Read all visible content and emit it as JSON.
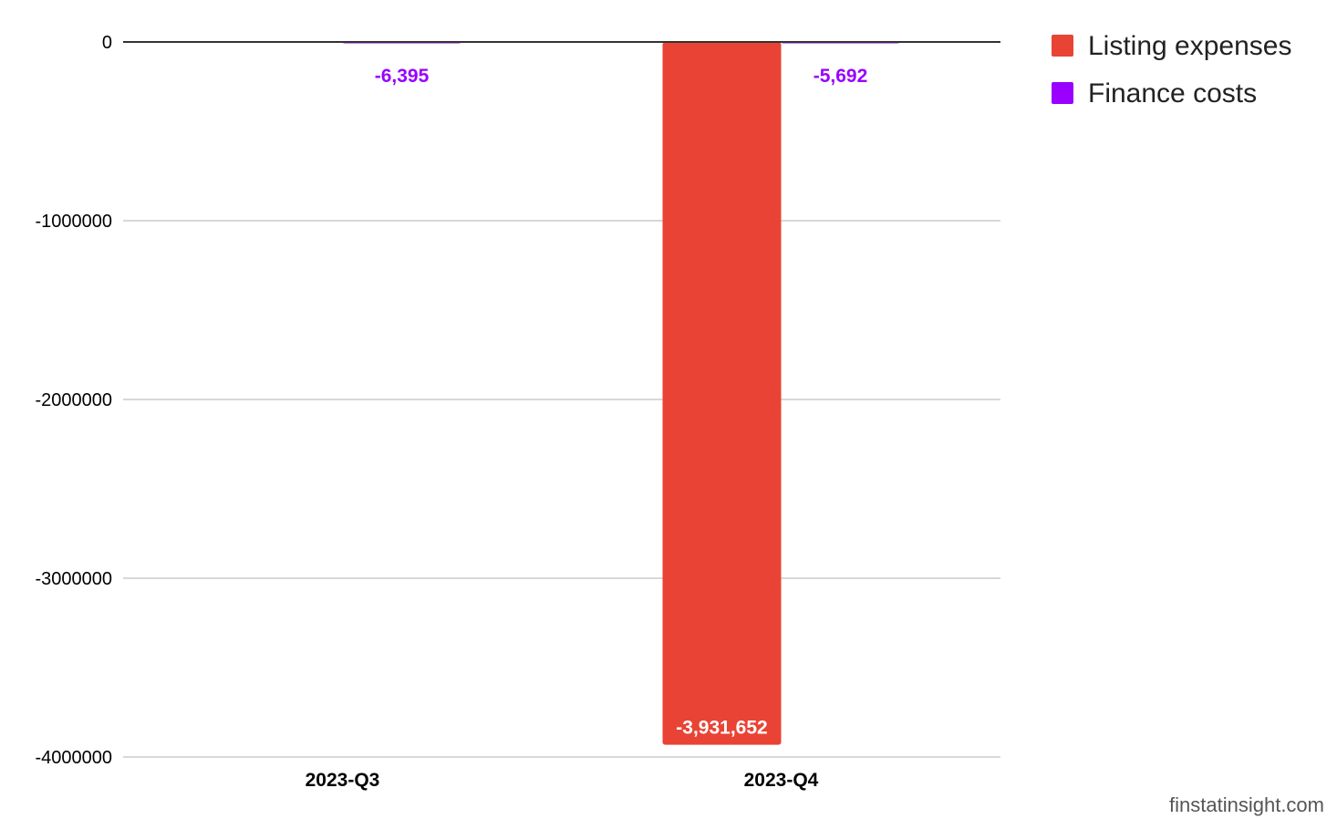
{
  "chart_data": {
    "type": "bar",
    "title": "",
    "xlabel": "",
    "ylabel": "",
    "categories": [
      "2023-Q3",
      "2023-Q4"
    ],
    "series": [
      {
        "name": "Listing expenses",
        "color": "#E94335",
        "values": [
          0,
          -3931652
        ],
        "labels": [
          "",
          "-3,931,652"
        ],
        "label_color": "#FFFFFF"
      },
      {
        "name": "Finance costs",
        "color": "#9900FF",
        "values": [
          -6395,
          -5692
        ],
        "labels": [
          "-6,395",
          "-5,692"
        ],
        "label_color": "#9900FF"
      }
    ],
    "ylim": [
      -4000000,
      0
    ],
    "yticks": [
      0,
      -1000000,
      -2000000,
      -3000000,
      -4000000
    ],
    "ytick_labels": [
      "0",
      "-1000000",
      "-2000000",
      "-3000000",
      "-4000000"
    ],
    "grid": true,
    "legend": "top-right"
  },
  "watermark": "finstatinsight.com"
}
